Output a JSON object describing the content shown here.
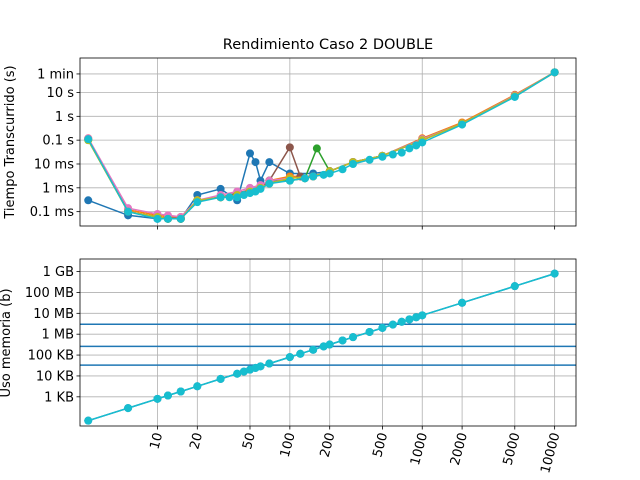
{
  "chart_data": [
    {
      "type": "line",
      "title": "Rendimiento Caso 2 DOUBLE",
      "xlabel": "",
      "ylabel": "Tiempo Transcurrido (s)",
      "xscale": "log",
      "yscale": "log",
      "xlim": [
        2.6,
        14500
      ],
      "ylim": [
        2.5e-05,
        280
      ],
      "grid": true,
      "show_x_tick_labels": false,
      "x_ticks": [
        {
          "value": 10,
          "label": "10"
        },
        {
          "value": 100,
          "label": "100"
        },
        {
          "value": 1000,
          "label": "1000"
        },
        {
          "value": 10000,
          "label": "10000"
        }
      ],
      "y_ticks": [
        {
          "value": 0.0001,
          "label": "0.1 ms"
        },
        {
          "value": 0.001,
          "label": "1 ms"
        },
        {
          "value": 0.01,
          "label": "10 ms"
        },
        {
          "value": 0.1,
          "label": "0.1 s"
        },
        {
          "value": 1,
          "label": "1 s"
        },
        {
          "value": 10,
          "label": "10 s"
        },
        {
          "value": 60,
          "label": "1 min"
        }
      ],
      "series": [
        {
          "color": "#1f77b4",
          "x": [
            3,
            6,
            10,
            12,
            15,
            20,
            30,
            40,
            50,
            55,
            60,
            70,
            100,
            150,
            200,
            300,
            500,
            1000,
            2000,
            5000,
            10000
          ],
          "y": [
            0.0003,
            7e-05,
            5e-05,
            6e-05,
            5e-05,
            0.0005,
            0.0009,
            0.0003,
            0.028,
            0.012,
            0.002,
            0.012,
            0.004,
            0.004,
            0.005,
            0.012,
            0.022,
            0.1,
            0.5,
            7,
            70
          ]
        },
        {
          "color": "#ff7f0e",
          "x": [
            3,
            6,
            10,
            12,
            15,
            20,
            30,
            40,
            50,
            60,
            70,
            100,
            150,
            200,
            300,
            500,
            1000,
            2000,
            5000,
            10000
          ],
          "y": [
            0.12,
            0.00012,
            7e-05,
            6e-05,
            6e-05,
            0.0003,
            0.0004,
            0.0006,
            0.0008,
            0.0012,
            0.002,
            0.003,
            0.003,
            0.005,
            0.012,
            0.022,
            0.12,
            0.55,
            8,
            70
          ]
        },
        {
          "color": "#2ca02c",
          "x": [
            3,
            6,
            10,
            12,
            15,
            20,
            30,
            40,
            50,
            60,
            70,
            100,
            130,
            160,
            200,
            300,
            500,
            1000,
            2000,
            5000,
            10000
          ],
          "y": [
            0.1,
            0.0001,
            6e-05,
            5e-05,
            5e-05,
            0.0003,
            0.0004,
            0.0005,
            0.0007,
            0.001,
            0.002,
            0.002,
            0.0025,
            0.045,
            0.005,
            0.012,
            0.022,
            0.11,
            0.5,
            7.5,
            70
          ]
        },
        {
          "color": "#8c564b",
          "x": [
            3,
            6,
            10,
            12,
            15,
            20,
            30,
            40,
            50,
            60,
            70,
            100,
            120,
            150,
            200,
            300,
            500,
            1000,
            2000,
            5000,
            10000
          ],
          "y": [
            0.11,
            0.0001,
            6e-05,
            5e-05,
            5e-05,
            0.0003,
            0.0004,
            0.0006,
            0.0008,
            0.001,
            0.002,
            0.05,
            0.003,
            0.003,
            0.005,
            0.012,
            0.022,
            0.1,
            0.5,
            7,
            70
          ]
        },
        {
          "color": "#e377c2",
          "x": [
            3,
            6,
            10,
            12,
            15,
            20,
            30,
            40,
            50,
            60,
            70,
            100,
            150,
            200,
            300,
            500,
            1000,
            2000,
            5000,
            10000
          ],
          "y": [
            0.12,
            0.00014,
            8e-05,
            7e-05,
            6e-05,
            0.0003,
            0.0005,
            0.0007,
            0.001,
            0.0013,
            0.002,
            0.0025,
            0.003,
            0.005,
            0.012,
            0.022,
            0.11,
            0.5,
            7.5,
            70
          ]
        },
        {
          "color": "#bcbd22",
          "x": [
            3,
            6,
            10,
            12,
            15,
            20,
            30,
            40,
            50,
            60,
            70,
            100,
            150,
            200,
            300,
            500,
            1000,
            2000,
            5000,
            10000
          ],
          "y": [
            0.1,
            0.0001,
            6e-05,
            5e-05,
            5e-05,
            0.0003,
            0.0004,
            0.0005,
            0.0007,
            0.001,
            0.0015,
            0.0025,
            0.003,
            0.005,
            0.012,
            0.022,
            0.1,
            0.5,
            7,
            70
          ]
        },
        {
          "color": "#17becf",
          "x": [
            3,
            6,
            10,
            12,
            15,
            20,
            30,
            35,
            40,
            45,
            50,
            55,
            60,
            70,
            100,
            130,
            150,
            180,
            200,
            250,
            300,
            400,
            500,
            600,
            700,
            800,
            900,
            1000,
            2000,
            5000,
            10000
          ],
          "y": [
            0.11,
            0.0001,
            5e-05,
            5e-05,
            5e-05,
            0.00025,
            0.0004,
            0.0004,
            0.0004,
            0.0005,
            0.0006,
            0.0007,
            0.0009,
            0.0015,
            0.002,
            0.0025,
            0.003,
            0.0035,
            0.004,
            0.006,
            0.01,
            0.015,
            0.02,
            0.025,
            0.03,
            0.045,
            0.06,
            0.08,
            0.45,
            6.5,
            70
          ]
        }
      ]
    },
    {
      "type": "line",
      "title": "",
      "xlabel": "",
      "ylabel": "Uso memoria (b)",
      "xscale": "log",
      "yscale": "log",
      "xlim": [
        2.6,
        14500
      ],
      "ylim": [
        40,
        4000000000
      ],
      "grid": true,
      "x_ticks": [
        {
          "value": 10,
          "label": "10"
        },
        {
          "value": 20,
          "label": "20"
        },
        {
          "value": 50,
          "label": "50"
        },
        {
          "value": 100,
          "label": "100"
        },
        {
          "value": 200,
          "label": "200"
        },
        {
          "value": 500,
          "label": "500"
        },
        {
          "value": 1000,
          "label": "1000"
        },
        {
          "value": 2000,
          "label": "2000"
        },
        {
          "value": 5000,
          "label": "5000"
        },
        {
          "value": 10000,
          "label": "10000"
        }
      ],
      "x_tick_rotation": 75,
      "y_ticks": [
        {
          "value": 1000,
          "label": "1 KB"
        },
        {
          "value": 10000,
          "label": "10 KB"
        },
        {
          "value": 100000,
          "label": "100 KB"
        },
        {
          "value": 1000000,
          "label": "1 MB"
        },
        {
          "value": 10000000,
          "label": "10 MB"
        },
        {
          "value": 100000000,
          "label": "100 MB"
        },
        {
          "value": 1000000000,
          "label": "1 GB"
        }
      ],
      "hlines": [
        {
          "y": 32768,
          "color": "#1f77b4"
        },
        {
          "y": 262144,
          "color": "#1f77b4"
        },
        {
          "y": 3000000,
          "color": "#1f77b4"
        }
      ],
      "series": [
        {
          "color": "#1f77b4",
          "x": [
            3,
            6,
            10,
            12,
            15,
            20,
            30,
            40,
            45,
            50,
            55,
            60,
            70,
            100,
            120,
            150,
            180,
            200,
            250,
            300,
            400,
            500,
            600,
            700,
            800,
            900,
            1000,
            2000,
            5000,
            10000
          ],
          "y": [
            72,
            288,
            800,
            1152,
            1800,
            3200,
            7200,
            12800,
            16200,
            20000,
            24200,
            28800,
            39200,
            80000,
            115200,
            180000,
            259200,
            320000,
            500000,
            720000,
            1280000,
            2000000,
            2880000,
            3920000,
            5120000,
            6480000,
            8000000,
            32000000,
            200000000,
            800000000
          ]
        },
        {
          "color": "#17becf",
          "x": [
            3,
            6,
            10,
            12,
            15,
            20,
            30,
            40,
            45,
            50,
            55,
            60,
            70,
            100,
            120,
            150,
            180,
            200,
            250,
            300,
            400,
            500,
            600,
            700,
            800,
            900,
            1000,
            2000,
            5000,
            10000
          ],
          "y": [
            72,
            288,
            800,
            1152,
            1800,
            3200,
            7200,
            12800,
            16200,
            20000,
            24200,
            28800,
            39200,
            80000,
            115200,
            180000,
            259200,
            320000,
            500000,
            720000,
            1280000,
            2000000,
            2880000,
            3920000,
            5120000,
            6480000,
            8000000,
            32000000,
            200000000,
            800000000
          ]
        }
      ]
    }
  ]
}
